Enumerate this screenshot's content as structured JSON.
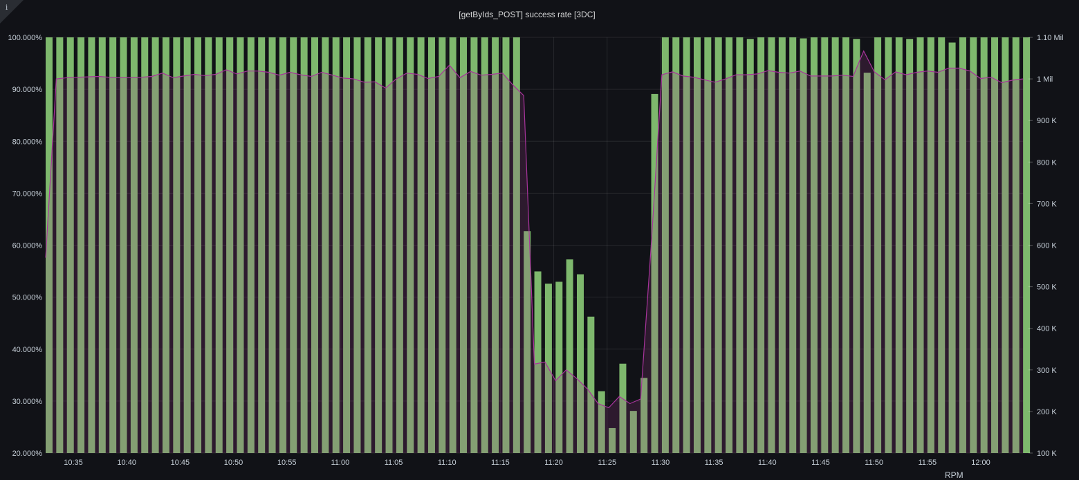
{
  "panel": {
    "title": "[getByIds_POST] success rate [3DC]",
    "info_icon": "i"
  },
  "chart_data": {
    "type": "bar",
    "title": "[getByIds_POST] success rate [3DC]",
    "x_ticks": [
      "10:35",
      "10:40",
      "10:45",
      "10:50",
      "10:55",
      "11:00",
      "11:05",
      "11:10",
      "11:15",
      "11:20",
      "11:25",
      "11:30",
      "11:35",
      "11:40",
      "11:45",
      "11:50",
      "11:55",
      "12:00"
    ],
    "x_tick_minutes": [
      635,
      640,
      645,
      650,
      655,
      660,
      665,
      670,
      675,
      680,
      685,
      690,
      695,
      700,
      705,
      710,
      715,
      720
    ],
    "left_axis": {
      "label": "success rate",
      "unit": "%",
      "ylim": [
        20,
        100
      ],
      "ticks": [
        100,
        90,
        80,
        70,
        60,
        50,
        40,
        30,
        20
      ],
      "tick_labels": [
        "100.000%",
        "90.000%",
        "80.000%",
        "70.000%",
        "60.000%",
        "50.000%",
        "40.000%",
        "30.000%",
        "20.000%"
      ]
    },
    "right_axis": {
      "label": "RPM",
      "unit": "K",
      "ylim": [
        100,
        1100
      ],
      "ticks": [
        1100,
        1000,
        900,
        800,
        700,
        600,
        500,
        400,
        300,
        200,
        100
      ],
      "tick_labels": [
        "1.10 Mil",
        "1 Mil",
        "900 K",
        "800 K",
        "700 K",
        "600 K",
        "500 K",
        "400 K",
        "300 K",
        "200 K",
        "100 K"
      ]
    },
    "grid": true,
    "series": [
      {
        "name": "success rate",
        "type": "bar",
        "axis": "left",
        "color": "#7eb86d",
        "values": [
          100,
          100,
          100,
          100,
          100,
          100,
          100,
          100,
          100,
          100,
          100,
          100,
          100,
          100,
          100,
          100,
          100,
          100,
          100,
          100,
          100,
          100,
          100,
          100,
          100,
          100,
          100,
          100,
          100,
          100,
          100,
          100,
          100,
          100,
          100,
          100,
          100,
          100,
          100,
          100,
          100,
          100,
          100,
          100,
          100,
          62.7,
          54.95,
          52.6,
          52.96,
          57.26,
          54.4,
          46.25,
          31.9,
          24.8,
          37.2,
          28.1,
          34.45,
          89.1,
          100,
          100,
          100,
          100,
          100,
          100,
          100,
          100,
          99.7,
          100,
          100,
          100,
          100,
          99.8,
          100,
          100,
          100,
          100,
          99.7,
          93.2,
          100,
          100,
          100,
          99.7,
          100,
          100,
          100,
          99.0,
          100,
          100,
          100,
          100,
          100,
          100,
          100
        ]
      },
      {
        "name": "RPM",
        "type": "line",
        "axis": "right",
        "fill": true,
        "color": "#a8349c",
        "values": [
          570,
          1000,
          1003,
          1004,
          1005,
          1006,
          1004,
          1003,
          1003,
          1004,
          1006,
          1014,
          1003,
          1007,
          1011,
          1008,
          1011,
          1022,
          1012,
          1019,
          1019,
          1016,
          1009,
          1016,
          1010,
          1006,
          1016,
          1009,
          1002,
          1000,
          992,
          993,
          978,
          1000,
          1014,
          1011,
          1001,
          1006,
          1033,
          1003,
          1018,
          1009,
          1011,
          1014,
          985,
          960,
          314,
          319,
          274,
          300,
          279,
          254,
          219,
          209,
          236,
          219,
          230,
          600,
          1010,
          1017,
          1007,
          1004,
          998,
          992,
          1000,
          1010,
          1010,
          1012,
          1020,
          1016,
          1014,
          1019,
          1007,
          1007,
          1007,
          1009,
          1006,
          1067,
          1017,
          998,
          1017,
          1010,
          1016,
          1019,
          1016,
          1026,
          1026,
          1019,
          1001,
          1004,
          991,
          997,
          1000
        ]
      }
    ]
  }
}
